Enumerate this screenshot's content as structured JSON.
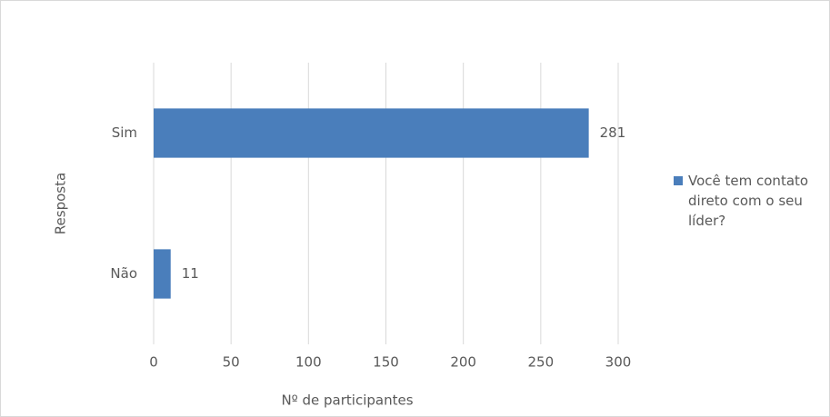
{
  "chart_data": {
    "type": "hbar",
    "categories": [
      "Sim",
      "Não"
    ],
    "series": [
      {
        "name": "Você tem contato direto com o seu líder?",
        "color": "#4a7ebb",
        "values": [
          281,
          11
        ]
      }
    ],
    "xlabel": "Nº de participantes",
    "ylabel": "Resposta",
    "xlim": [
      0,
      300
    ],
    "xticks": [
      0,
      50,
      100,
      150,
      200,
      250,
      300
    ],
    "grid": true,
    "legend": "right"
  }
}
